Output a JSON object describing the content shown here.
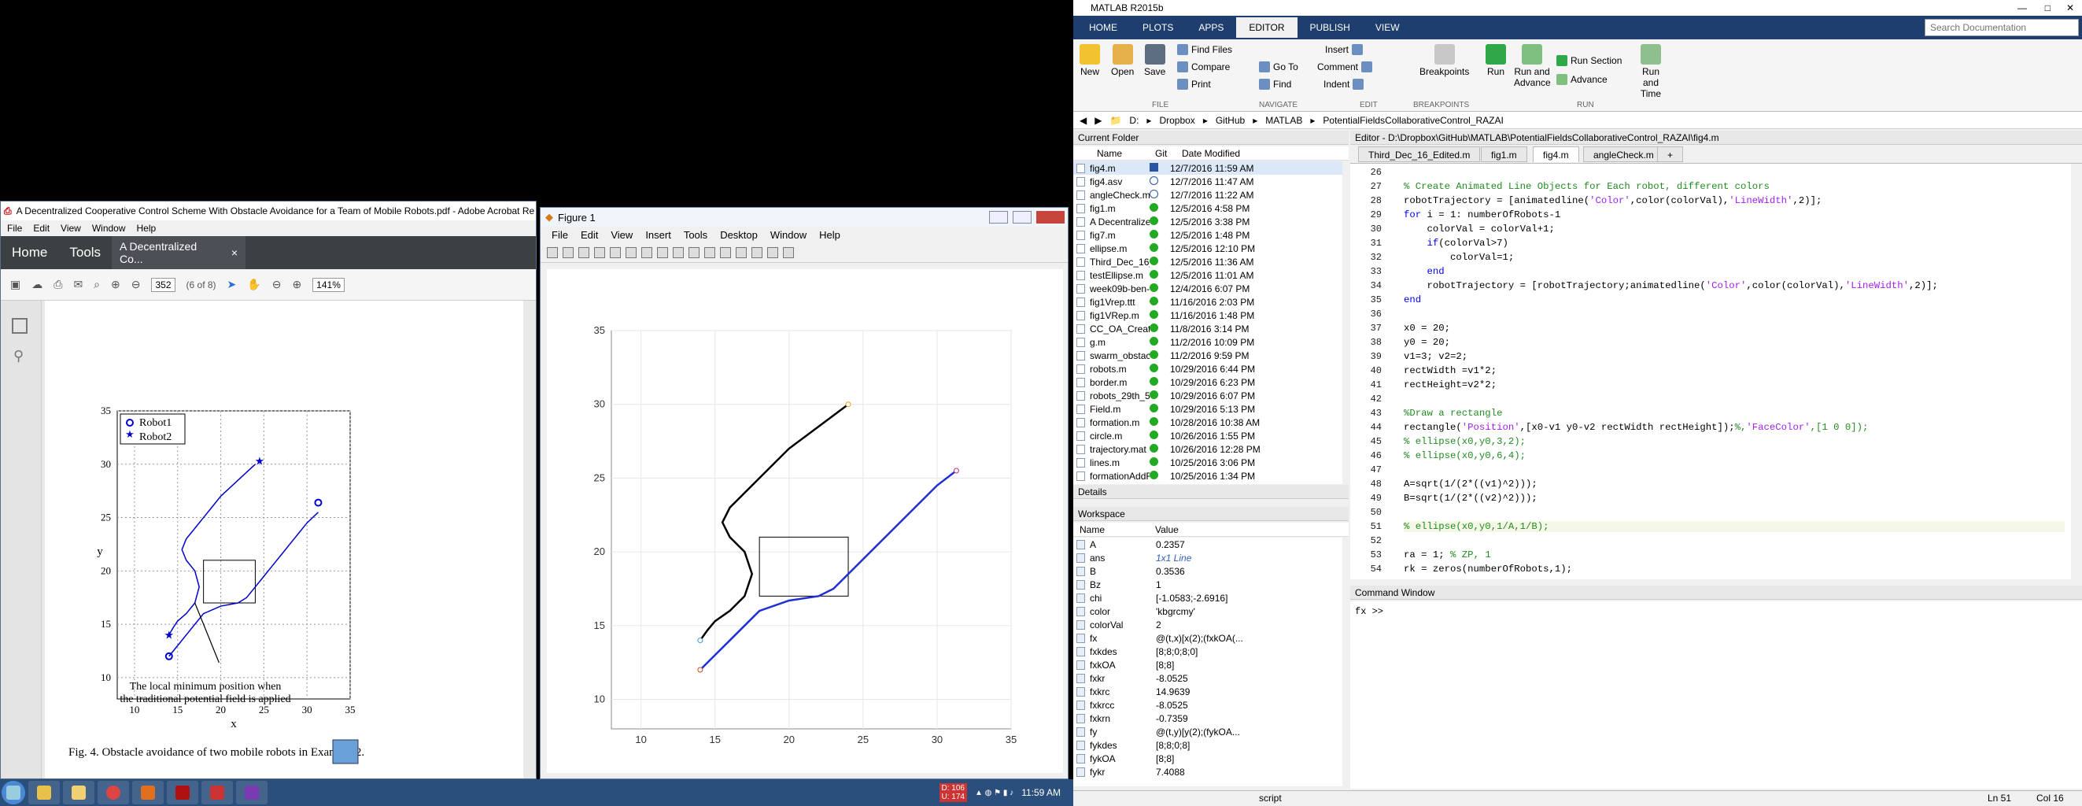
{
  "acrobat": {
    "title": "A Decentralized Cooperative Control Scheme With Obstacle Avoidance for a Team of Mobile Robots.pdf - Adobe Acrobat Re",
    "menu": [
      "File",
      "Edit",
      "View",
      "Window",
      "Help"
    ],
    "nav_home": "Home",
    "nav_tools": "Tools",
    "tab_label": "A Decentralized Co...",
    "tab_close": "×",
    "page_num": "352",
    "page_of": "(6 of 8)",
    "zoom": "141%",
    "figure": {
      "legend": [
        "Robot1",
        "Robot2"
      ],
      "xlabel": "x",
      "ylabel": "y",
      "xticks": [
        "10",
        "15",
        "20",
        "25",
        "30",
        "35"
      ],
      "yticks": [
        "10",
        "15",
        "20",
        "25",
        "30",
        "35"
      ],
      "annotation1": "The local minimum position when",
      "annotation2": "the traditional potential field is applied",
      "caption": "Fig. 4.    Obstacle avoidance of two mobile robots in Example 2."
    }
  },
  "figure_window": {
    "title": "Figure 1",
    "menu": [
      "File",
      "Edit",
      "View",
      "Insert",
      "Tools",
      "Desktop",
      "Window",
      "Help"
    ],
    "xticks": [
      "10",
      "15",
      "20",
      "25",
      "30",
      "35"
    ],
    "yticks": [
      "10",
      "15",
      "20",
      "25",
      "30",
      "35"
    ]
  },
  "chart_data": {
    "type": "line",
    "xlim": [
      8,
      35
    ],
    "ylim": [
      8,
      35
    ],
    "grid": true,
    "series": [
      {
        "x": [
          14,
          14.5,
          15,
          16,
          17,
          17.5,
          17,
          16,
          15.5,
          16,
          17,
          18,
          19,
          20,
          22,
          24
        ],
        "y": [
          14,
          14.7,
          15.3,
          16,
          17,
          18.5,
          20,
          21,
          22,
          23,
          24,
          25,
          26,
          27,
          28.5,
          30
        ]
      },
      {
        "x": [
          14,
          15,
          16,
          17,
          18,
          20,
          22,
          23,
          24,
          25,
          26,
          27,
          28,
          29,
          30,
          31.3
        ],
        "y": [
          12,
          13,
          14,
          15,
          16,
          16.7,
          17,
          17.5,
          18.5,
          19.5,
          20.5,
          21.5,
          22.5,
          23.5,
          24.5,
          25.5
        ]
      }
    ],
    "obstacle": {
      "x": [
        18,
        24
      ],
      "y": [
        17,
        21
      ]
    }
  },
  "matlab": {
    "title": "MATLAB R2015b",
    "tabs": [
      "HOME",
      "PLOTS",
      "APPS",
      "EDITOR",
      "PUBLISH",
      "VIEW"
    ],
    "active_tab": "EDITOR",
    "search_placeholder": "Search Documentation",
    "ribbon": {
      "new": "New",
      "open": "Open",
      "save": "Save",
      "find_files": "Find Files",
      "compare": "Compare",
      "print": "Print",
      "goto": "Go To",
      "find": "Find",
      "insert": "Insert",
      "comment": "Comment",
      "indent": "Indent",
      "breakpoints": "Breakpoints",
      "run": "Run",
      "run_advance": "Run and Advance",
      "run_section": "Run Section",
      "advance": "Advance",
      "run_time": "Run and Time",
      "sect_file": "FILE",
      "sect_navigate": "NAVIGATE",
      "sect_edit": "EDIT",
      "sect_breakpoints": "BREAKPOINTS",
      "sect_run": "RUN"
    },
    "path": [
      "D:",
      "Dropbox",
      "GitHub",
      "MATLAB",
      "PotentialFieldsCollaborativeControl_RAZAI"
    ],
    "current_folder": {
      "title": "Current Folder",
      "cols": [
        "Name",
        "Git",
        "Date Modified"
      ],
      "files": [
        [
          "fig4.m",
          "s",
          "12/7/2016 11:59 AM"
        ],
        [
          "fig4.asv",
          "o",
          "12/7/2016 11:47 AM"
        ],
        [
          "angleCheck.m",
          "o",
          "12/7/2016 11:22 AM"
        ],
        [
          "fig1.m",
          "g",
          "12/5/2016 4:58 PM"
        ],
        [
          "A Decentralized Coo...",
          "g",
          "12/5/2016 3:38 PM"
        ],
        [
          "fig7.m",
          "g",
          "12/5/2016 1:48 PM"
        ],
        [
          "ellipse.m",
          "g",
          "12/5/2016 12:10 PM"
        ],
        [
          "Third_Dec_16_Edited...",
          "g",
          "12/5/2016 11:36 AM"
        ],
        [
          "testEllipse.m",
          "g",
          "12/5/2016 11:01 AM"
        ],
        [
          "week09b-ben-potenti...",
          "g",
          "12/4/2016 6:07 PM"
        ],
        [
          "fig1Vrep.ttt",
          "g",
          "11/16/2016 2:03 PM"
        ],
        [
          "fig1VRep.m",
          "g",
          "11/16/2016 1:48 PM"
        ],
        [
          "CC_OA_Creating_Fo...",
          "g",
          "11/8/2016 3:14 PM"
        ],
        [
          "g.m",
          "g",
          "11/2/2016 10:09 PM"
        ],
        [
          "swarm_obstacle.m",
          "g",
          "11/2/2016 9:59 PM"
        ],
        [
          "robots.m",
          "g",
          "10/29/2016 6:44 PM"
        ],
        [
          "border.m",
          "g",
          "10/29/2016 6:23 PM"
        ],
        [
          "robots_29th_5pm.m",
          "g",
          "10/29/2016 6:07 PM"
        ],
        [
          "Field.m",
          "g",
          "10/29/2016 5:13 PM"
        ],
        [
          "formation.m",
          "g",
          "10/28/2016 10:38 AM"
        ],
        [
          "circle.m",
          "g",
          "10/26/2016 1:55 PM"
        ],
        [
          "trajectory.mat",
          "g",
          "10/26/2016 12:28 PM"
        ],
        [
          "lines.m",
          "g",
          "10/25/2016 3:06 PM"
        ],
        [
          "formationAddRobot...",
          "g",
          "10/25/2016 1:34 PM"
        ]
      ]
    },
    "details": "Details",
    "workspace": {
      "title": "Workspace",
      "cols": [
        "Name",
        "Value"
      ],
      "vars": [
        [
          "A",
          "0.2357"
        ],
        [
          "ans",
          "1x1 Line"
        ],
        [
          "B",
          "0.3536"
        ],
        [
          "Bz",
          "1"
        ],
        [
          "chi",
          "[-1.0583;-2.6916]"
        ],
        [
          "color",
          "'kbgrcmy'"
        ],
        [
          "colorVal",
          "2"
        ],
        [
          "fx",
          "@(t,x)[x(2);(fxkOA(..."
        ],
        [
          "fxkdes",
          "[8;8;0;8;0]"
        ],
        [
          "fxkOA",
          "[8;8]"
        ],
        [
          "fxkr",
          "-8.0525"
        ],
        [
          "fxkrc",
          "14.9639"
        ],
        [
          "fxkrcc",
          "-8.0525"
        ],
        [
          "fxkrn",
          "-0.7359"
        ],
        [
          "fy",
          "@(t,y)[y(2);(fykOA..."
        ],
        [
          "fykdes",
          "[8;8;0;8]"
        ],
        [
          "fykOA",
          "[8;8]"
        ],
        [
          "fykr",
          "7.4088"
        ]
      ]
    },
    "editor": {
      "header": "Editor - D:\\Dropbox\\GitHub\\MATLAB\\PotentialFieldsCollaborativeControl_RAZAI\\fig4.m",
      "tabs": [
        "Third_Dec_16_Edited.m",
        "fig1.m",
        "fig4.m",
        "angleCheck.m",
        "+"
      ],
      "active": "fig4.m",
      "lines": [
        [
          "26",
          ""
        ],
        [
          "27",
          "% Create Animated Line Objects for Each robot, different colors"
        ],
        [
          "28",
          "robotTrajectory = [animatedline('Color',color(colorVal),'LineWidth',2)];"
        ],
        [
          "29",
          "for i = 1: numberOfRobots-1"
        ],
        [
          "30",
          "    colorVal = colorVal+1;"
        ],
        [
          "31",
          "    if(colorVal>7)"
        ],
        [
          "32",
          "        colorVal=1;"
        ],
        [
          "33",
          "    end"
        ],
        [
          "34",
          "    robotTrajectory = [robotTrajectory;animatedline('Color',color(colorVal),'LineWidth',2)];"
        ],
        [
          "35",
          "end"
        ],
        [
          "36",
          ""
        ],
        [
          "37",
          "x0 = 20;"
        ],
        [
          "38",
          "y0 = 20;"
        ],
        [
          "39",
          "v1=3; v2=2;"
        ],
        [
          "40",
          "rectWidth =v1*2;"
        ],
        [
          "41",
          "rectHeight=v2*2;"
        ],
        [
          "42",
          ""
        ],
        [
          "43",
          "%Draw a rectangle"
        ],
        [
          "44",
          "rectangle('Position',[x0-v1 y0-v2 rectWidth rectHeight]);%,'FaceColor',[1 0 0]);"
        ],
        [
          "45",
          "% ellipse(x0,y0,3,2);"
        ],
        [
          "46",
          "% ellipse(x0,y0,6,4);"
        ],
        [
          "47",
          ""
        ],
        [
          "48",
          "A=sqrt(1/(2*((v1)^2)));"
        ],
        [
          "49",
          "B=sqrt(1/(2*((v2)^2)));"
        ],
        [
          "50",
          ""
        ],
        [
          "51",
          "% ellipse(x0,y0,1/A,1/B);"
        ],
        [
          "52",
          ""
        ],
        [
          "53",
          "ra = 1; % ZP, 1"
        ],
        [
          "54",
          "rk = zeros(numberOfRobots,1);"
        ]
      ]
    },
    "command_window": "Command Window",
    "prompt": "fx >>",
    "status": {
      "mode": "script",
      "ln": "Ln  51",
      "col": "Col  16"
    }
  },
  "taskbar": {
    "time": "11:59 AM",
    "notif1": "D: 106",
    "notif2": "U: 174"
  }
}
